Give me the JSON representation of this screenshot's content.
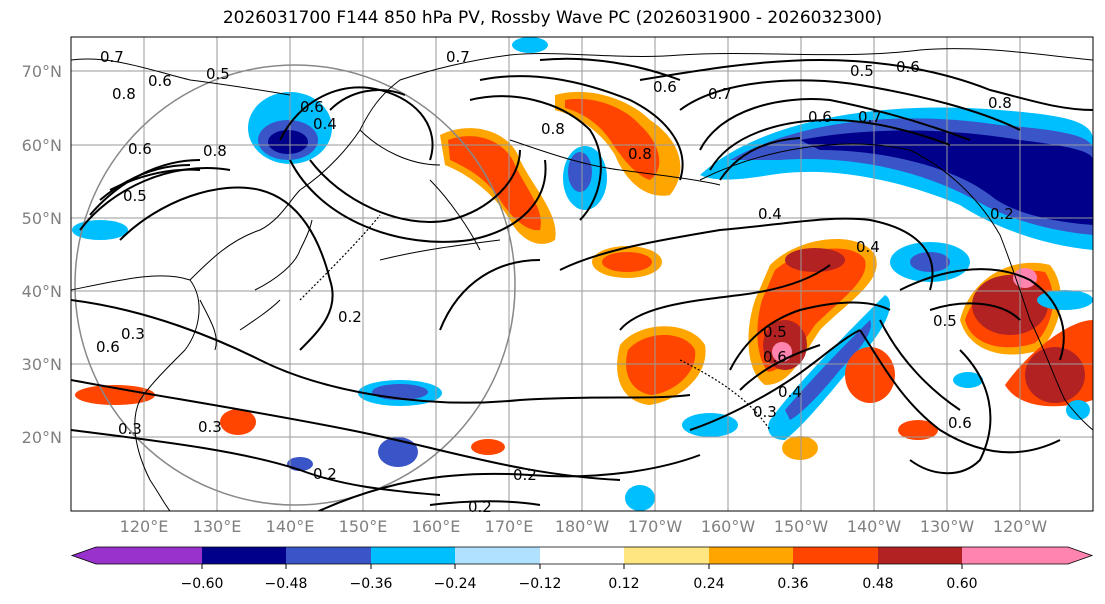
{
  "title": "2026031700 F144 850 hPa PV, Rossby Wave PC (2026031900 - 2026032300)",
  "lat_labels": [
    "70°N",
    "60°N",
    "50°N",
    "40°N",
    "30°N",
    "20°N"
  ],
  "lon_labels": [
    "120°E",
    "130°E",
    "140°E",
    "150°E",
    "160°E",
    "170°E",
    "180°W",
    "170°W",
    "160°W",
    "150°W",
    "140°W",
    "130°W",
    "120°W"
  ],
  "colorbar": {
    "ticks": [
      "−0.60",
      "−0.48",
      "−0.36",
      "−0.24",
      "−0.12",
      "0.12",
      "0.24",
      "0.36",
      "0.48",
      "0.60"
    ],
    "colors": [
      "#9932cc",
      "#00008b",
      "#3a55c8",
      "#00bfff",
      "#b0e2ff",
      "#ffffff",
      "#ffe680",
      "#ffa500",
      "#ff4500",
      "#b22222",
      "#ff85b0"
    ]
  },
  "contour_labels": [
    "0.7",
    "0.8",
    "0.6",
    "0.5",
    "0.6",
    "0.8",
    "0.6",
    "0.4",
    "0.5",
    "0.7",
    "0.8",
    "0.8",
    "0.7",
    "0.6",
    "0.5",
    "0.6",
    "0.8",
    "0.7",
    "0.6",
    "0.4",
    "0.2",
    "0.3",
    "0.6",
    "0.3",
    "0.3",
    "0.2",
    "0.2",
    "0.2",
    "0.5",
    "0.6",
    "0.4",
    "0.3",
    "0.5",
    "0.6",
    "0.2",
    "0.4"
  ],
  "colors": {
    "contour": "#000000",
    "grid": "#9a9a9a",
    "tick_text": "#808080"
  }
}
